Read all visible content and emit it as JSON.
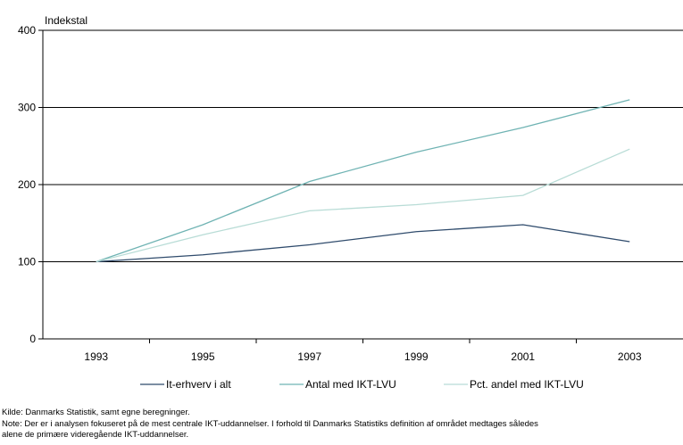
{
  "chart_data": {
    "type": "line",
    "ylabel": "Indekstal",
    "x": [
      "1993",
      "1995",
      "1997",
      "1999",
      "2001",
      "2003"
    ],
    "ylim": [
      0,
      400
    ],
    "yticks": [
      "0",
      "100",
      "200",
      "300",
      "400"
    ],
    "grid": true,
    "legend_position": "bottom",
    "series": [
      {
        "name": "It-erhverv i alt",
        "values": [
          100,
          109,
          122,
          139,
          148,
          126
        ],
        "color": "#2f4b6c"
      },
      {
        "name": "Antal med IKT-LVU",
        "values": [
          100,
          148,
          204,
          242,
          274,
          310
        ],
        "color": "#6fb3b3"
      },
      {
        "name": "Pct. andel med IKT-LVU",
        "values": [
          100,
          135,
          166,
          174,
          186,
          246
        ],
        "color": "#b8dcd6"
      }
    ]
  },
  "notes": {
    "source": "Kilde: Danmarks Statistik, samt egne beregninger.",
    "note_line1": "Note: Der er i analysen fokuseret på de mest centrale IKT-uddannelser. I forhold til Danmarks Statistiks definition af området medtages således",
    "note_line2": "alene de primære videregående IKT-uddannelser."
  }
}
